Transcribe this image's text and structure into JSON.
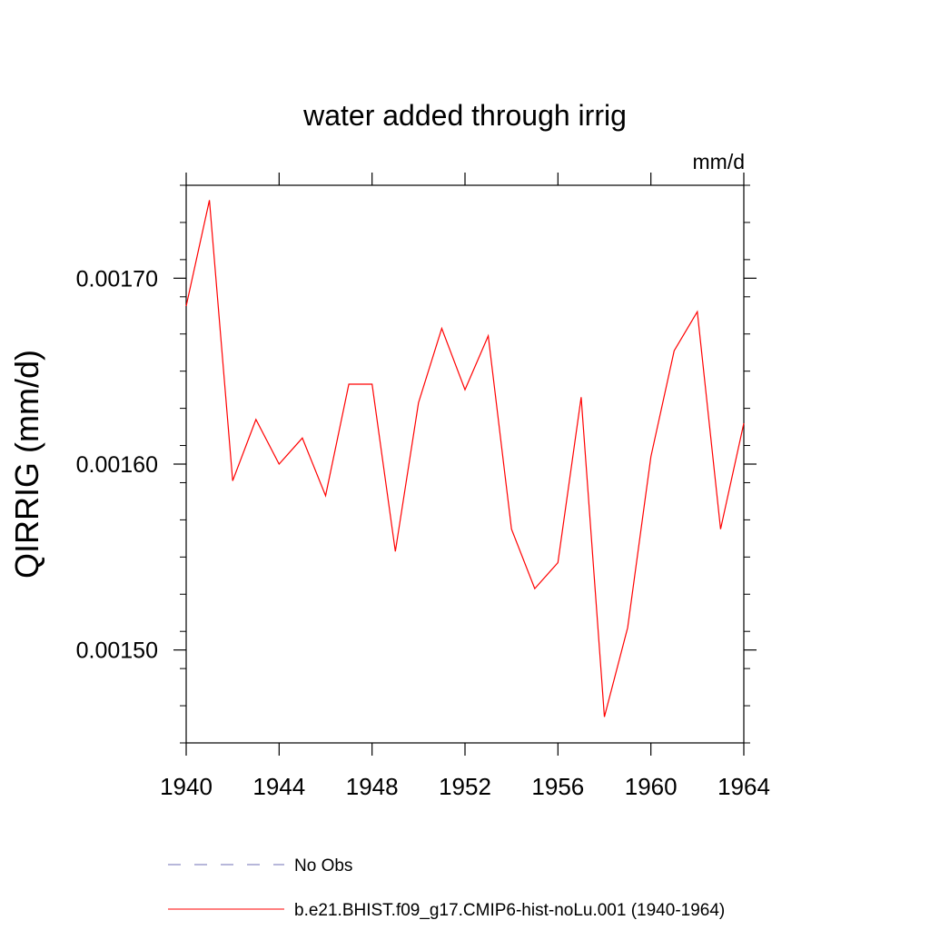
{
  "chart_data": {
    "type": "line",
    "title": "water added through irrig",
    "units_label": "mm/d",
    "ylabel": "QIRRIG  (mm/d)",
    "xlabel": "",
    "xlim": [
      1940,
      1964
    ],
    "ylim": [
      0.00145,
      0.00175
    ],
    "x_ticks": [
      1940,
      1944,
      1948,
      1952,
      1956,
      1960,
      1964
    ],
    "y_ticks": [
      0.0015,
      0.0016,
      0.0017
    ],
    "y_tick_labels": [
      "0.00150",
      "0.00160",
      "0.00170"
    ],
    "grid": false,
    "legend_position": "bottom",
    "series": [
      {
        "name": "No Obs",
        "style": "dashed",
        "color": "#6f6fb5",
        "x": [],
        "y": []
      },
      {
        "name": "b.e21.BHIST.f09_g17.CMIP6-hist-noLu.001 (1940-1964)",
        "style": "solid",
        "color": "#ff0000",
        "x": [
          1940,
          1941,
          1942,
          1943,
          1944,
          1945,
          1946,
          1947,
          1948,
          1949,
          1950,
          1951,
          1952,
          1953,
          1954,
          1955,
          1956,
          1957,
          1958,
          1959,
          1960,
          1961,
          1962,
          1963,
          1964
        ],
        "y": [
          0.001685,
          0.001742,
          0.001591,
          0.001624,
          0.0016,
          0.001614,
          0.001583,
          0.001643,
          0.001643,
          0.001553,
          0.001633,
          0.001673,
          0.00164,
          0.001669,
          0.001565,
          0.001533,
          0.001547,
          0.001636,
          0.001464,
          0.001512,
          0.001604,
          0.001661,
          0.001682,
          0.001565,
          0.001622
        ]
      }
    ]
  }
}
